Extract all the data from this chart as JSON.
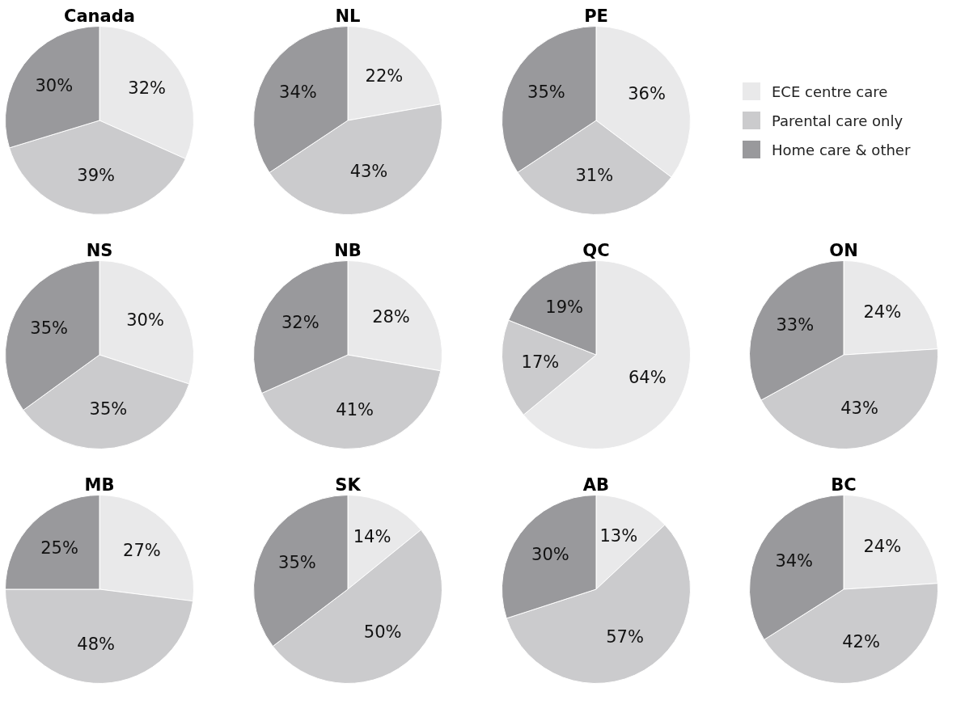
{
  "chart_data": [
    {
      "type": "pie",
      "title": "Canada",
      "categories": [
        "ECE centre care",
        "Parental care only",
        "Home care & other"
      ],
      "values": [
        32,
        39,
        30
      ],
      "value_labels": [
        "32%",
        "39%",
        "30%"
      ],
      "colors": [
        "#e9e9ea",
        "#cbcbcd",
        "#99999c"
      ],
      "legend": "right"
    },
    {
      "type": "pie",
      "title": "NL",
      "values": [
        22,
        43,
        34
      ],
      "value_labels": [
        "22%",
        "43%",
        "34%"
      ],
      "colors": [
        "#e9e9ea",
        "#cbcbcd",
        "#99999c"
      ]
    },
    {
      "type": "pie",
      "title": "PE",
      "values": [
        36,
        31,
        35
      ],
      "value_labels": [
        "36%",
        "31%",
        "35%"
      ],
      "colors": [
        "#e9e9ea",
        "#cbcbcd",
        "#99999c"
      ]
    },
    {
      "type": "pie",
      "title": "NS",
      "values": [
        30,
        35,
        35
      ],
      "value_labels": [
        "30%",
        "35%",
        "35%"
      ],
      "colors": [
        "#e9e9ea",
        "#cbcbcd",
        "#99999c"
      ]
    },
    {
      "type": "pie",
      "title": "NB",
      "values": [
        28,
        41,
        32
      ],
      "value_labels": [
        "28%",
        "41%",
        "32%"
      ],
      "colors": [
        "#e9e9ea",
        "#cbcbcd",
        "#99999c"
      ]
    },
    {
      "type": "pie",
      "title": "QC",
      "values": [
        64,
        17,
        19
      ],
      "value_labels": [
        "64%",
        "17%",
        "19%"
      ],
      "colors": [
        "#e9e9ea",
        "#cbcbcd",
        "#99999c"
      ]
    },
    {
      "type": "pie",
      "title": "ON",
      "values": [
        24,
        43,
        33
      ],
      "value_labels": [
        "24%",
        "43%",
        "33%"
      ],
      "colors": [
        "#e9e9ea",
        "#cbcbcd",
        "#99999c"
      ]
    },
    {
      "type": "pie",
      "title": "MB",
      "values": [
        27,
        48,
        25
      ],
      "value_labels": [
        "27%",
        "48%",
        "25%"
      ],
      "colors": [
        "#e9e9ea",
        "#cbcbcd",
        "#99999c"
      ]
    },
    {
      "type": "pie",
      "title": "SK",
      "values": [
        14,
        50,
        35
      ],
      "value_labels": [
        "14%",
        "50%",
        "35%"
      ],
      "colors": [
        "#e9e9ea",
        "#cbcbcd",
        "#99999c"
      ]
    },
    {
      "type": "pie",
      "title": "AB",
      "values": [
        13,
        57,
        30
      ],
      "value_labels": [
        "13%",
        "57%",
        "30%"
      ],
      "colors": [
        "#e9e9ea",
        "#cbcbcd",
        "#99999c"
      ]
    },
    {
      "type": "pie",
      "title": "BC",
      "values": [
        24,
        42,
        34
      ],
      "value_labels": [
        "24%",
        "42%",
        "34%"
      ],
      "colors": [
        "#e9e9ea",
        "#cbcbcd",
        "#99999c"
      ]
    }
  ]
}
